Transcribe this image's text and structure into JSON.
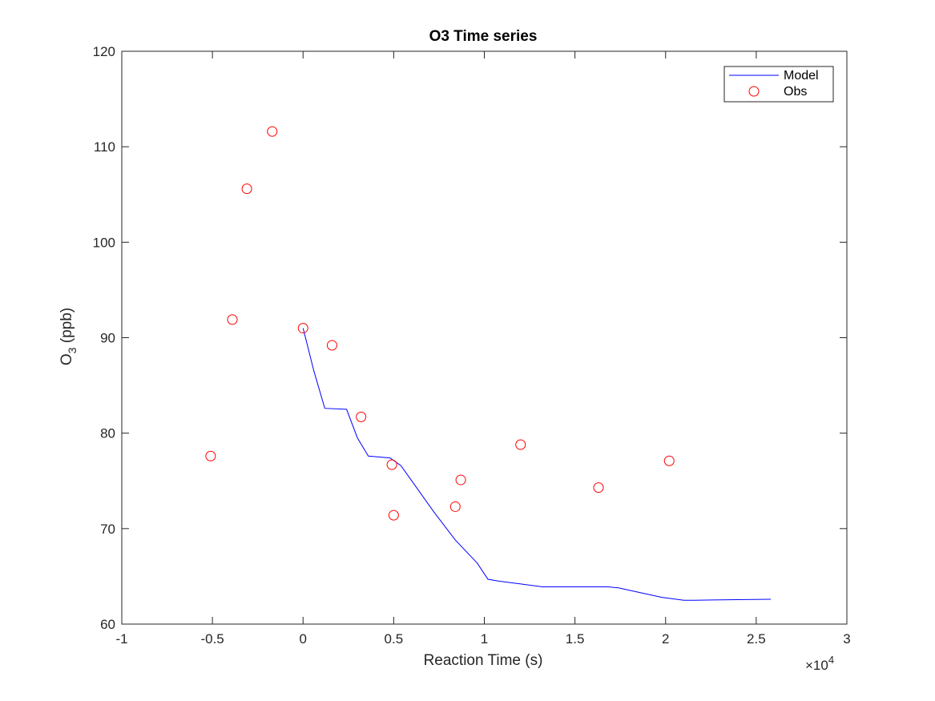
{
  "chart_data": {
    "type": "line",
    "title": "O3 Time series",
    "xlabel": "Reaction Time (s)",
    "ylabel_main": "O",
    "ylabel_sub": "3",
    "ylabel_tail": " (ppb)",
    "x_exponent_prefix": "×10",
    "x_exponent_power": "4",
    "xlim": [
      -1,
      3
    ],
    "ylim": [
      60,
      120
    ],
    "x_scale_note": "x values in units of 10^4 s",
    "xticks": [
      -1,
      -0.5,
      0,
      0.5,
      1,
      1.5,
      2,
      2.5,
      3
    ],
    "xtick_labels": [
      "-1",
      "-0.5",
      "0",
      "0.5",
      "1",
      "1.5",
      "2",
      "2.5",
      "3"
    ],
    "yticks": [
      60,
      70,
      80,
      90,
      100,
      110,
      120
    ],
    "ytick_labels": [
      "60",
      "70",
      "80",
      "90",
      "100",
      "110",
      "120"
    ],
    "grid": false,
    "legend_position": "top-right",
    "series": [
      {
        "name": "Model",
        "kind": "line",
        "color": "#0000ff",
        "x": [
          0,
          0.06,
          0.12,
          0.24,
          0.3,
          0.36,
          0.48,
          0.54,
          0.6,
          0.72,
          0.84,
          0.96,
          1.02,
          1.08,
          1.2,
          1.32,
          1.44,
          1.56,
          1.68,
          1.74,
          1.86,
          1.98,
          2.1,
          2.16,
          2.58
        ],
        "y": [
          91.0,
          86.5,
          82.6,
          82.5,
          79.5,
          77.6,
          77.4,
          76.6,
          75.0,
          71.8,
          68.8,
          66.4,
          64.7,
          64.5,
          64.2,
          63.9,
          63.9,
          63.9,
          63.9,
          63.8,
          63.3,
          62.8,
          62.5,
          62.5,
          62.6
        ]
      },
      {
        "name": "Obs",
        "kind": "scatter",
        "color": "#ff0000",
        "x": [
          -0.51,
          -0.39,
          -0.31,
          -0.17,
          0.0,
          0.16,
          0.32,
          0.49,
          0.5,
          0.84,
          0.87,
          1.2,
          1.63,
          2.02
        ],
        "y": [
          77.6,
          91.9,
          105.6,
          111.6,
          91.0,
          89.2,
          81.7,
          76.7,
          71.4,
          72.3,
          75.1,
          78.8,
          74.3,
          77.1
        ]
      }
    ]
  }
}
